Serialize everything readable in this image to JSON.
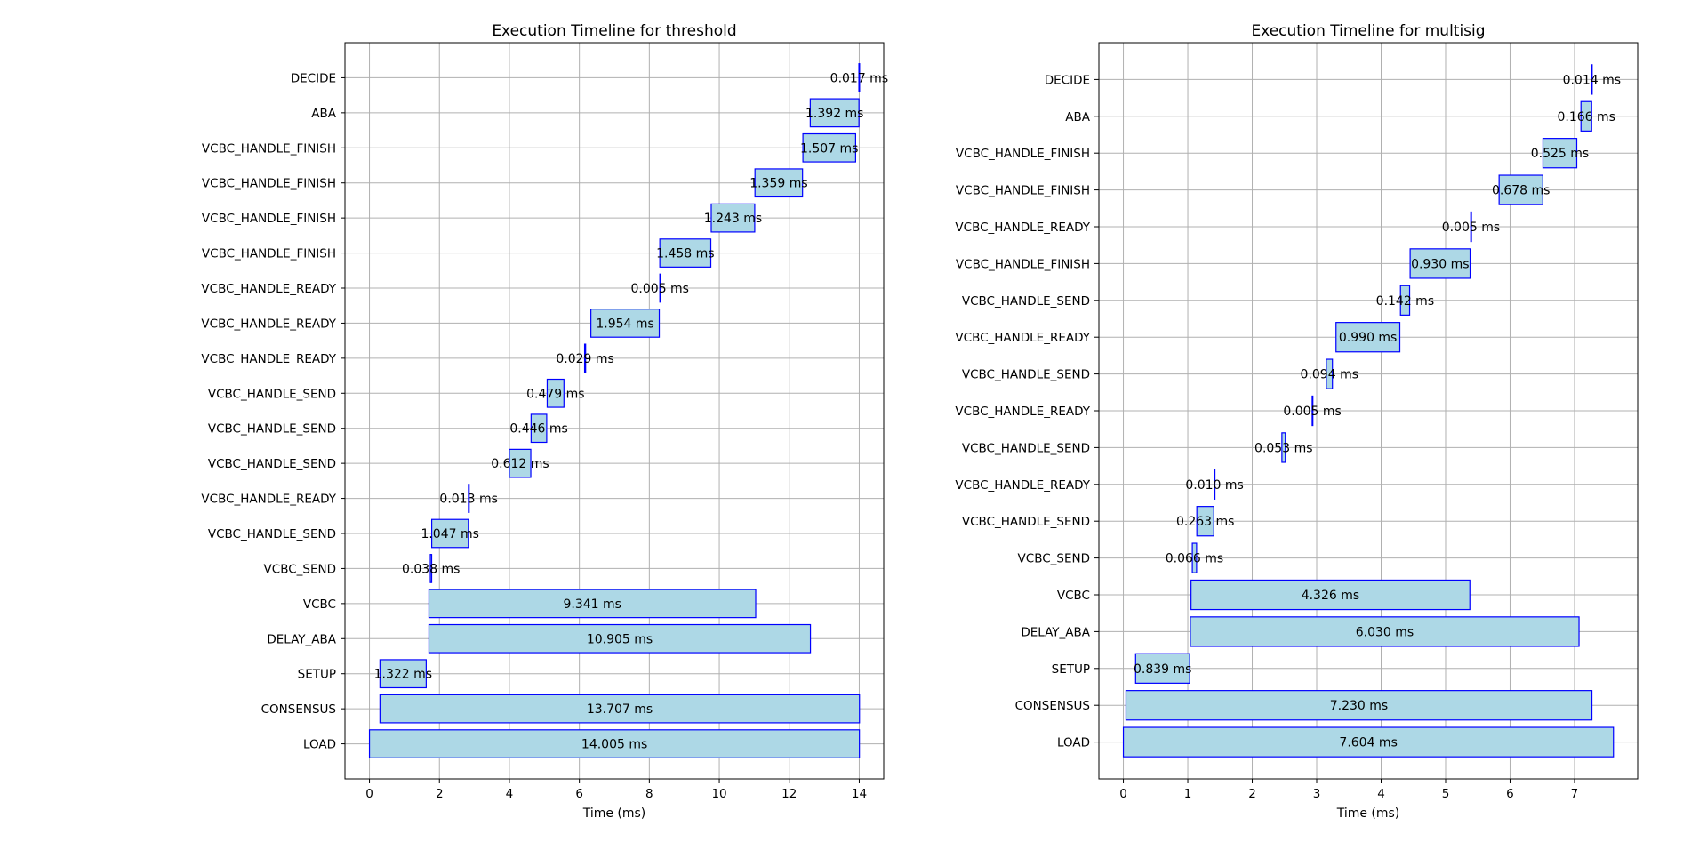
{
  "chart_data": [
    {
      "type": "timeline",
      "title": "Execution Timeline for threshold",
      "xlabel": "Time (ms)",
      "xlim": [
        -0.7,
        14.7
      ],
      "xticks": [
        0,
        2,
        4,
        6,
        8,
        10,
        12,
        14
      ],
      "grid": true,
      "colors": {
        "bar_fill": "#add8e6",
        "bar_edge": "#0000ff"
      },
      "tasks": [
        {
          "name": "LOAD",
          "start": 0.0,
          "duration": 14.005,
          "label": "14.005 ms"
        },
        {
          "name": "CONSENSUS",
          "start": 0.3,
          "duration": 13.707,
          "label": "13.707 ms"
        },
        {
          "name": "SETUP",
          "start": 0.3,
          "duration": 1.322,
          "label": "1.322 ms"
        },
        {
          "name": "DELAY_ABA",
          "start": 1.7,
          "duration": 10.905,
          "label": "10.905 ms"
        },
        {
          "name": "VCBC",
          "start": 1.7,
          "duration": 9.341,
          "label": "9.341 ms"
        },
        {
          "name": "VCBC_SEND",
          "start": 1.74,
          "duration": 0.038,
          "label": "0.038 ms"
        },
        {
          "name": "VCBC_HANDLE_SEND",
          "start": 1.78,
          "duration": 1.047,
          "label": "1.047 ms"
        },
        {
          "name": "VCBC_HANDLE_READY",
          "start": 2.83,
          "duration": 0.013,
          "label": "0.013 ms"
        },
        {
          "name": "VCBC_HANDLE_SEND",
          "start": 4.0,
          "duration": 0.612,
          "label": "0.612 ms"
        },
        {
          "name": "VCBC_HANDLE_SEND",
          "start": 4.62,
          "duration": 0.446,
          "label": "0.446 ms"
        },
        {
          "name": "VCBC_HANDLE_SEND",
          "start": 5.08,
          "duration": 0.479,
          "label": "0.479 ms"
        },
        {
          "name": "VCBC_HANDLE_READY",
          "start": 6.15,
          "duration": 0.029,
          "label": "0.029 ms"
        },
        {
          "name": "VCBC_HANDLE_READY",
          "start": 6.33,
          "duration": 1.954,
          "label": "1.954 ms"
        },
        {
          "name": "VCBC_HANDLE_READY",
          "start": 8.3,
          "duration": 0.005,
          "label": "0.005 ms"
        },
        {
          "name": "VCBC_HANDLE_FINISH",
          "start": 8.3,
          "duration": 1.458,
          "label": "1.458 ms"
        },
        {
          "name": "VCBC_HANDLE_FINISH",
          "start": 9.77,
          "duration": 1.243,
          "label": "1.243 ms"
        },
        {
          "name": "VCBC_HANDLE_FINISH",
          "start": 11.02,
          "duration": 1.359,
          "label": "1.359 ms"
        },
        {
          "name": "VCBC_HANDLE_FINISH",
          "start": 12.39,
          "duration": 1.507,
          "label": "1.507 ms"
        },
        {
          "name": "ABA",
          "start": 12.6,
          "duration": 1.392,
          "label": "1.392 ms"
        },
        {
          "name": "DECIDE",
          "start": 13.99,
          "duration": 0.017,
          "label": "0.017 ms"
        }
      ]
    },
    {
      "type": "timeline",
      "title": "Execution Timeline for multisig",
      "xlabel": "Time (ms)",
      "xlim": [
        -0.38,
        7.98
      ],
      "xticks": [
        0,
        1,
        2,
        3,
        4,
        5,
        6,
        7
      ],
      "grid": true,
      "colors": {
        "bar_fill": "#add8e6",
        "bar_edge": "#0000ff"
      },
      "tasks": [
        {
          "name": "LOAD",
          "start": 0.0,
          "duration": 7.604,
          "label": "7.604 ms"
        },
        {
          "name": "CONSENSUS",
          "start": 0.04,
          "duration": 7.23,
          "label": "7.230 ms"
        },
        {
          "name": "SETUP",
          "start": 0.19,
          "duration": 0.839,
          "label": "0.839 ms"
        },
        {
          "name": "DELAY_ABA",
          "start": 1.04,
          "duration": 6.03,
          "label": "6.030 ms"
        },
        {
          "name": "VCBC",
          "start": 1.05,
          "duration": 4.326,
          "label": "4.326 ms"
        },
        {
          "name": "VCBC_SEND",
          "start": 1.07,
          "duration": 0.066,
          "label": "0.066 ms"
        },
        {
          "name": "VCBC_HANDLE_SEND",
          "start": 1.14,
          "duration": 0.263,
          "label": "0.263 ms"
        },
        {
          "name": "VCBC_HANDLE_READY",
          "start": 1.41,
          "duration": 0.01,
          "label": "0.010 ms"
        },
        {
          "name": "VCBC_HANDLE_SEND",
          "start": 2.46,
          "duration": 0.053,
          "label": "0.053 ms"
        },
        {
          "name": "VCBC_HANDLE_READY",
          "start": 2.93,
          "duration": 0.005,
          "label": "0.005 ms"
        },
        {
          "name": "VCBC_HANDLE_SEND",
          "start": 3.15,
          "duration": 0.094,
          "label": "0.094 ms"
        },
        {
          "name": "VCBC_HANDLE_READY",
          "start": 3.3,
          "duration": 0.99,
          "label": "0.990 ms"
        },
        {
          "name": "VCBC_HANDLE_SEND",
          "start": 4.3,
          "duration": 0.142,
          "label": "0.142 ms"
        },
        {
          "name": "VCBC_HANDLE_FINISH",
          "start": 4.45,
          "duration": 0.93,
          "label": "0.930 ms"
        },
        {
          "name": "VCBC_HANDLE_READY",
          "start": 5.39,
          "duration": 0.005,
          "label": "0.005 ms"
        },
        {
          "name": "VCBC_HANDLE_FINISH",
          "start": 5.83,
          "duration": 0.678,
          "label": "0.678 ms"
        },
        {
          "name": "VCBC_HANDLE_FINISH",
          "start": 6.51,
          "duration": 0.525,
          "label": "0.525 ms"
        },
        {
          "name": "ABA",
          "start": 7.1,
          "duration": 0.166,
          "label": "0.166 ms"
        },
        {
          "name": "DECIDE",
          "start": 7.26,
          "duration": 0.014,
          "label": "0.014 ms"
        }
      ]
    }
  ]
}
